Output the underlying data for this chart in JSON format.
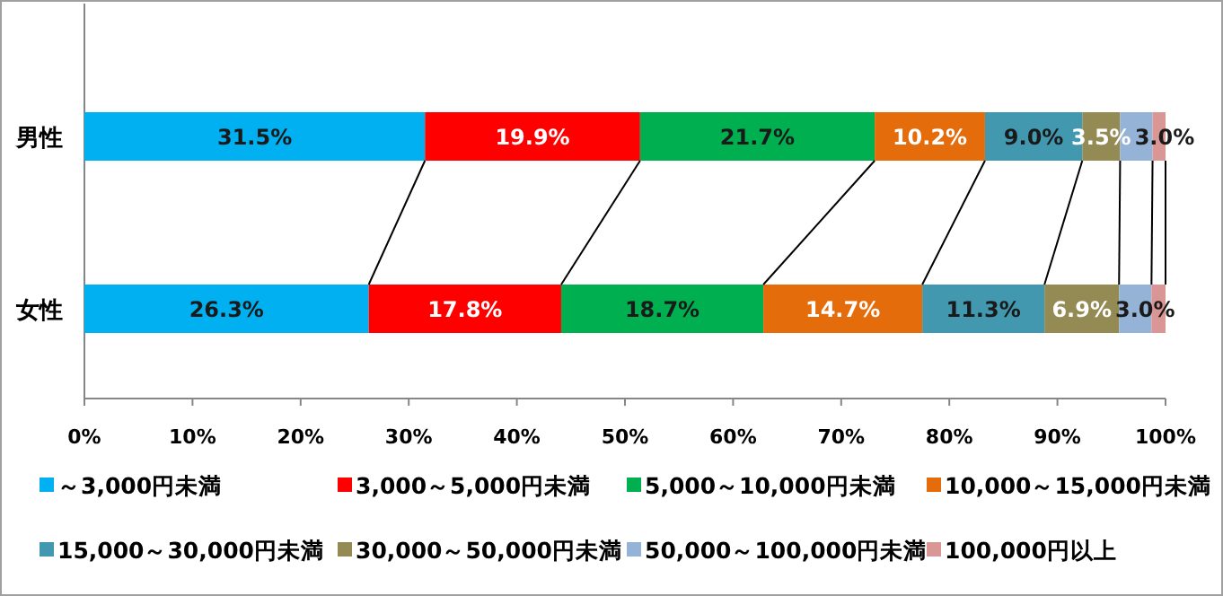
{
  "chart_data": {
    "type": "bar",
    "orientation": "horizontal",
    "stacked": true,
    "legend": "bottom",
    "categories": [
      "男性",
      "女性"
    ],
    "xlim": [
      0,
      100
    ],
    "xticks": [
      {
        "value": 0,
        "label": "0%"
      },
      {
        "value": 10,
        "label": "10%"
      },
      {
        "value": 20,
        "label": "20%"
      },
      {
        "value": 30,
        "label": "30%"
      },
      {
        "value": 40,
        "label": "40%"
      },
      {
        "value": 50,
        "label": "50%"
      },
      {
        "value": 60,
        "label": "60%"
      },
      {
        "value": 70,
        "label": "70%"
      },
      {
        "value": 80,
        "label": "80%"
      },
      {
        "value": 90,
        "label": "90%"
      },
      {
        "value": 100,
        "label": "100%"
      }
    ],
    "series": [
      {
        "name": "～3,000円未満",
        "color": "#00b0f0",
        "values": [
          31.5,
          26.3
        ],
        "value_labels": [
          "31.5%",
          "26.3%"
        ]
      },
      {
        "name": "3,000～5,000円未満",
        "color": "#ff0000",
        "values": [
          19.9,
          17.8
        ],
        "value_labels": [
          "19.9%",
          "17.8%"
        ]
      },
      {
        "name": "5,000～10,000円未満",
        "color": "#00b050",
        "values": [
          21.7,
          18.7
        ],
        "value_labels": [
          "21.7%",
          "18.7%"
        ]
      },
      {
        "name": "10,000～15,000円未満",
        "color": "#e46c0a",
        "values": [
          10.2,
          14.7
        ],
        "value_labels": [
          "10.2%",
          "14.7%"
        ]
      },
      {
        "name": "15,000～30,000円未満",
        "color": "#4198af",
        "values": [
          9.0,
          11.3
        ],
        "value_labels": [
          "9.0%",
          "11.3%"
        ]
      },
      {
        "name": "30,000～50,000円未満",
        "color": "#948a54",
        "values": [
          3.5,
          6.9
        ],
        "value_labels": [
          "3.5%",
          "6.9%"
        ]
      },
      {
        "name": "50,000～100,000円未満",
        "color": "#95b3d7",
        "values": [
          3.0,
          3.0
        ],
        "value_labels": [
          "3.0%",
          "3.0%"
        ]
      },
      {
        "name": "100,000円以上",
        "color": "#d99694",
        "values": [
          1.2,
          1.3
        ],
        "value_labels": [
          null,
          null
        ]
      }
    ]
  }
}
